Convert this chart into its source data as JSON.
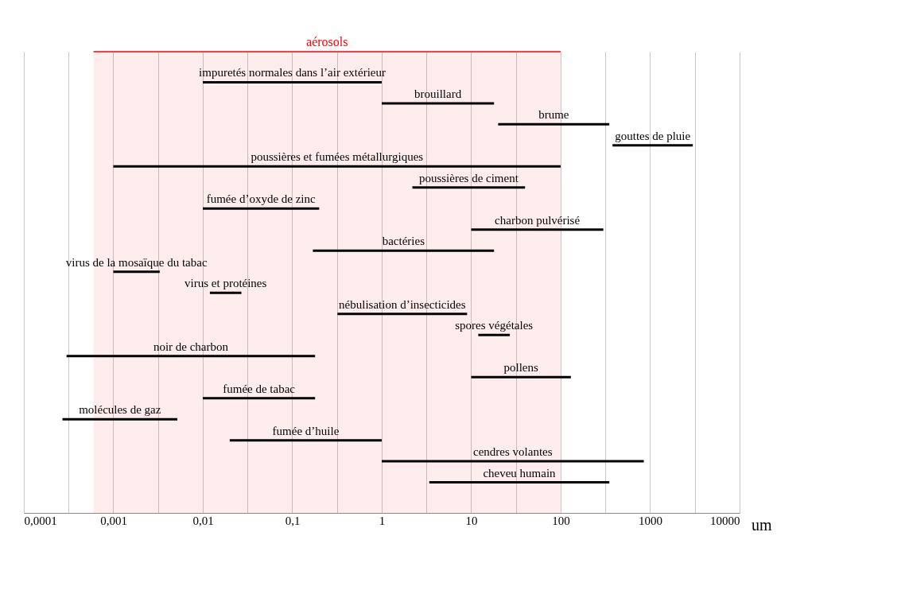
{
  "chart_data": {
    "type": "bar",
    "orientation": "horizontal",
    "log": "x",
    "xlabel": "um",
    "grid": "x",
    "tick_labels": "x",
    "color": "#000000",
    "categories": [
      "impuretés normales dans l’air extérieur",
      "brouillard",
      "brume",
      "gouttes de pluie",
      "poussières et fumées métallurgiques",
      "poussières de ciment",
      "fumée d’oxyde de zinc",
      "charbon pulvérisé",
      "bactéries",
      "virus de la mosaïque du tabac",
      "virus et protéines",
      "nébulisation d’insecticides",
      "spores végétales",
      "noir de charbon",
      "pollens",
      "fumée de tabac",
      "molécules de gaz",
      "fumée d’huile",
      "cendres volantes",
      "cheveu humain"
    ],
    "base": [
      0.01,
      1,
      20,
      380,
      0.001,
      2.2,
      0.01,
      10,
      0.17,
      0.001,
      0.012,
      0.32,
      12,
      0.0003,
      10,
      0.01,
      0.00027,
      0.02,
      1,
      3.4
    ],
    "values": [
      0.99,
      17,
      330,
      2620,
      99.999,
      37.8,
      0.19,
      290,
      17.83,
      0.0023,
      0.015,
      8.68,
      15,
      0.1797,
      120,
      0.17,
      0.00493,
      0.98,
      849,
      346.6
    ],
    "xlim": [
      0.0001,
      10000
    ],
    "xticks": [
      {
        "value": 0.0001,
        "label": "0,0001"
      },
      {
        "value": 0.0003162,
        "label": null
      },
      {
        "value": 0.001,
        "label": "0,001"
      },
      {
        "value": 0.003162,
        "label": null
      },
      {
        "value": 0.01,
        "label": "0,01"
      },
      {
        "value": 0.03162,
        "label": null
      },
      {
        "value": 0.1,
        "label": "0,1"
      },
      {
        "value": 0.3162,
        "label": null
      },
      1,
      {
        "value": 3.162,
        "label": null
      },
      10,
      {
        "value": 31.62,
        "label": null
      },
      100,
      {
        "value": 316.2,
        "label": null
      },
      1000,
      {
        "value": 3162,
        "label": null
      },
      10000
    ],
    "bands": [
      {
        "axis": "x",
        "from": 0.0006,
        "to": 100,
        "label": "aérosols",
        "color": "#ff0000"
      }
    ]
  }
}
